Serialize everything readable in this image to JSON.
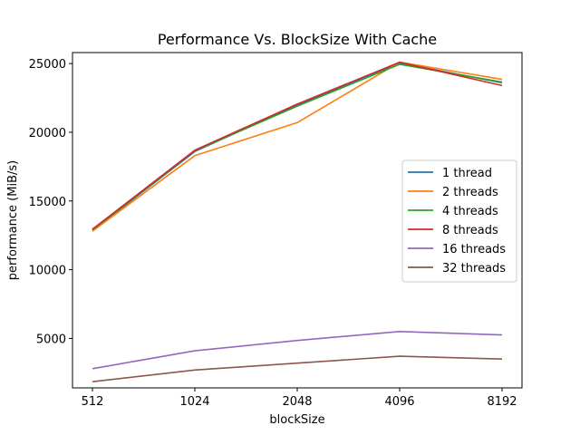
{
  "chart_data": {
    "type": "line",
    "title": "Performance Vs. BlockSize With Cache",
    "xlabel": "blockSize",
    "ylabel": "performance (MiB/s)",
    "categories": [
      "512",
      "1024",
      "2048",
      "4096",
      "8192"
    ],
    "y_ticks": [
      "5000",
      "10000",
      "15000",
      "20000",
      "25000"
    ],
    "ylim": [
      1400,
      25800
    ],
    "grid": false,
    "legend_position": "center-right",
    "series": [
      {
        "name": "1 thread",
        "color": "#1f77b4",
        "values": [
          12850,
          18600,
          22000,
          25050,
          23600
        ]
      },
      {
        "name": "2 threads",
        "color": "#ff7f0e",
        "values": [
          12800,
          18300,
          20700,
          25100,
          23850
        ]
      },
      {
        "name": "4 threads",
        "color": "#2ca02c",
        "values": [
          12900,
          18650,
          21900,
          24950,
          23650
        ]
      },
      {
        "name": "8 threads",
        "color": "#d62728",
        "values": [
          12950,
          18700,
          22050,
          25100,
          23400
        ]
      },
      {
        "name": "16 threads",
        "color": "#9467bd",
        "values": [
          2800,
          4100,
          4850,
          5500,
          5250
        ]
      },
      {
        "name": "32 threads",
        "color": "#8c564b",
        "values": [
          1850,
          2700,
          3200,
          3700,
          3500
        ]
      }
    ]
  }
}
